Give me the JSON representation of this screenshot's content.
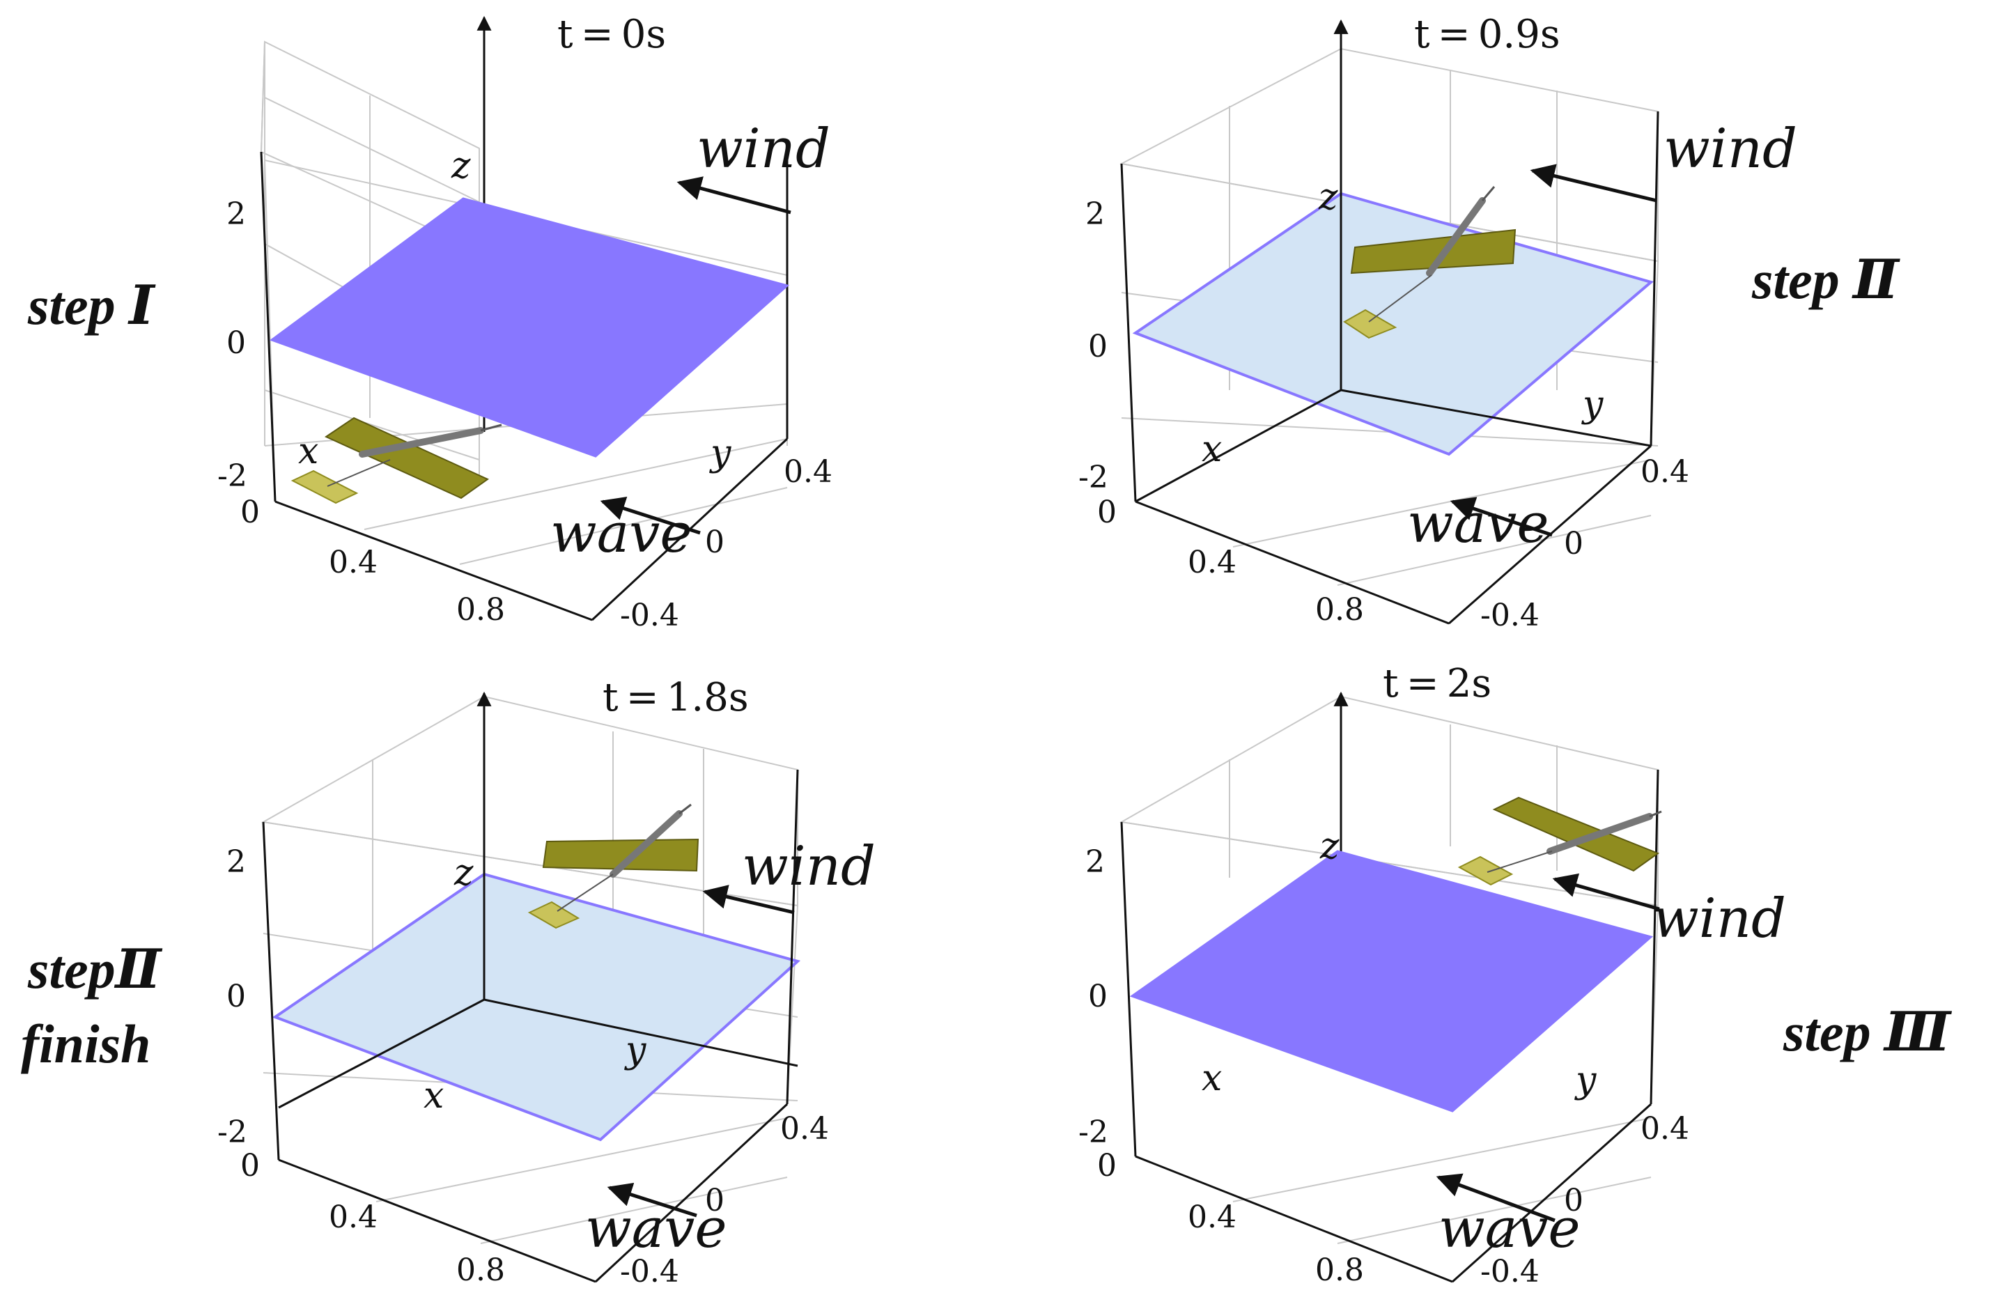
{
  "colors": {
    "surface_opaque": "#8877ff",
    "surface_translucent": "#d3e4f5",
    "surface_edge": "#8877ff",
    "grid": "#c8c8c8",
    "axis": "#111111",
    "device_panel": "#8f8c1f",
    "device_panel_light": "#c9c35a",
    "device_body": "#777777"
  },
  "panels": [
    {
      "title": "t = 0s",
      "step_lines": [
        "step Ⅰ"
      ],
      "surface_style": "opaque",
      "device_position": "below surface",
      "force_labels": {
        "wind": "wind",
        "wave": "wave"
      },
      "axis_labels": {
        "x": "x",
        "y": "y",
        "z": "z"
      },
      "z_ticks": [
        "2",
        "0",
        "-2"
      ],
      "x_ticks": [
        "0",
        "0.4",
        "0.8"
      ],
      "y_ticks": [
        "0.4",
        "0",
        "-0.4"
      ]
    },
    {
      "title": "t = 0.9s",
      "step_lines": [
        "step Ⅱ"
      ],
      "surface_style": "translucent",
      "device_position": "crossing surface",
      "force_labels": {
        "wind": "wind",
        "wave": "wave"
      },
      "axis_labels": {
        "x": "x",
        "y": "y",
        "z": "z"
      },
      "z_ticks": [
        "2",
        "0",
        "-2"
      ],
      "x_ticks": [
        "0",
        "0.4",
        "0.8"
      ],
      "y_ticks": [
        "0.4",
        "0",
        "-0.4"
      ]
    },
    {
      "title": "t = 1.8s",
      "step_lines": [
        "stepⅡ",
        "finish"
      ],
      "surface_style": "translucent",
      "device_position": "above surface",
      "force_labels": {
        "wind": "wind",
        "wave": "wave"
      },
      "axis_labels": {
        "x": "x",
        "y": "y",
        "z": "z"
      },
      "z_ticks": [
        "2",
        "0",
        "-2"
      ],
      "x_ticks": [
        "0",
        "0.4",
        "0.8"
      ],
      "y_ticks": [
        "0.4",
        "0",
        "-0.4"
      ]
    },
    {
      "title": "t = 2s",
      "step_lines": [
        "step Ⅲ"
      ],
      "surface_style": "opaque",
      "device_position": "above surface",
      "force_labels": {
        "wind": "wind",
        "wave": "wave"
      },
      "axis_labels": {
        "x": "x",
        "y": "y",
        "z": "z"
      },
      "z_ticks": [
        "2",
        "0",
        "-2"
      ],
      "x_ticks": [
        "0",
        "0.4",
        "0.8"
      ],
      "y_ticks": [
        "0.4",
        "0",
        "-0.4"
      ]
    }
  ]
}
